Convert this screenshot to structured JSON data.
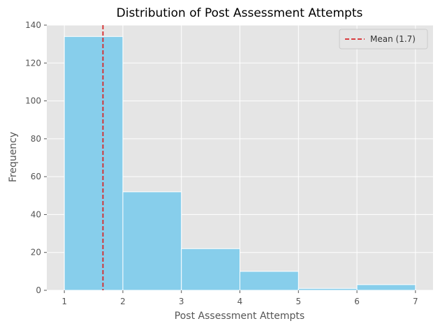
{
  "chart_data": {
    "type": "bar",
    "title": "Distribution of Post Assessment Attempts",
    "xlabel": "Post Assessment Attempts",
    "ylabel": "Frequency",
    "xlim": [
      0.7,
      7.3
    ],
    "ylim": [
      0,
      140
    ],
    "x_ticks": [
      1,
      2,
      3,
      4,
      5,
      6,
      7
    ],
    "y_ticks": [
      0,
      20,
      40,
      60,
      80,
      100,
      120,
      140
    ],
    "bins": [
      {
        "start": 1,
        "end": 2,
        "value": 134
      },
      {
        "start": 2,
        "end": 3,
        "value": 52
      },
      {
        "start": 3,
        "end": 4,
        "value": 22
      },
      {
        "start": 4,
        "end": 5,
        "value": 10
      },
      {
        "start": 5,
        "end": 6,
        "value": 1
      },
      {
        "start": 6,
        "end": 7,
        "value": 3
      }
    ],
    "mean_line": {
      "value": 1.66,
      "label": "Mean (1.7)",
      "color": "#d62728",
      "style": "dashed"
    },
    "bar_color": "#87ceeb",
    "background_color": "#e5e5e5",
    "grid": true,
    "legend_position": "top-right"
  }
}
